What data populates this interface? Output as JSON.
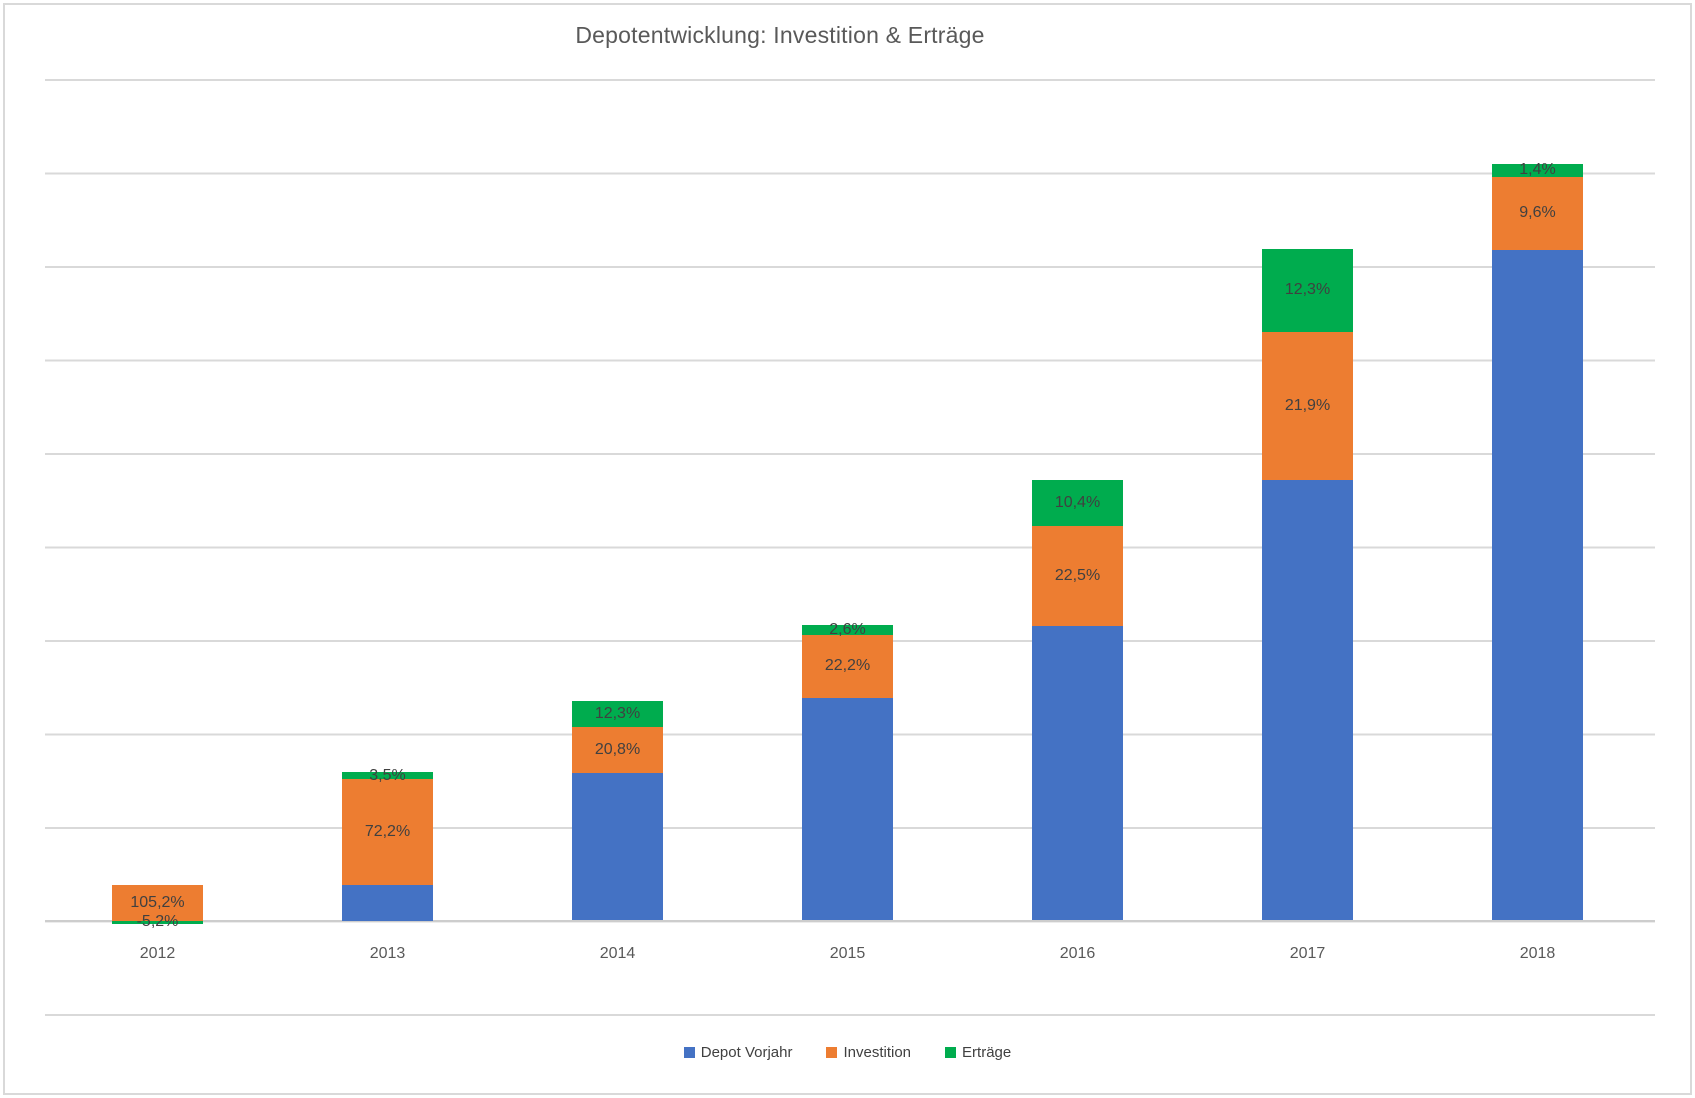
{
  "title": "Depotentwicklung: Investition & Erträge",
  "colors": {
    "depot_vorjahr": "#4472C4",
    "investition": "#ED7D31",
    "ertraege": "#00AC4E",
    "gridline": "#D9D9D9",
    "title_text": "#595959",
    "axis_text": "#595959",
    "label_text": "#404040"
  },
  "legend": {
    "items": [
      {
        "key": "depot_vorjahr",
        "label": "Depot Vorjahr"
      },
      {
        "key": "investition",
        "label": "Investition"
      },
      {
        "key": "ertraege",
        "label": "Erträge"
      }
    ]
  },
  "chart_data": {
    "type": "bar",
    "stacked": true,
    "grid": true,
    "legend_position": "bottom",
    "title": "Depotentwicklung: Investition & Erträge",
    "xlabel": "",
    "ylabel": "",
    "value_axis": {
      "tick_labels_visible": false,
      "gridline_divisions": 10,
      "ylim_units": [
        -1,
        9
      ]
    },
    "categories": [
      "2012",
      "2013",
      "2014",
      "2015",
      "2016",
      "2017",
      "2018"
    ],
    "series": [
      {
        "name": "Depot Vorjahr",
        "key": "depot_vorjahr",
        "values_units": [
          0,
          0.375,
          1.578,
          2.38,
          3.15,
          4.712,
          7.171
        ],
        "labels": [
          "",
          "",
          "",
          "",
          "",
          "",
          ""
        ]
      },
      {
        "name": "Investition",
        "key": "investition",
        "values_units": [
          0.375,
          1.134,
          0.492,
          0.674,
          1.07,
          1.583,
          0.781
        ],
        "labels": [
          "105,2%",
          "72,2%",
          "20,8%",
          "22,2%",
          "22,5%",
          "21,9%",
          "9,6%"
        ]
      },
      {
        "name": "Erträge",
        "key": "ertraege",
        "values_units": [
          -0.04,
          0.075,
          0.278,
          0.107,
          0.492,
          0.888,
          0.139
        ],
        "labels": [
          "-5,2%",
          "3,5%",
          "12,3%",
          "2,6%",
          "10,4%",
          "12,3%",
          "1,4%"
        ]
      }
    ]
  }
}
